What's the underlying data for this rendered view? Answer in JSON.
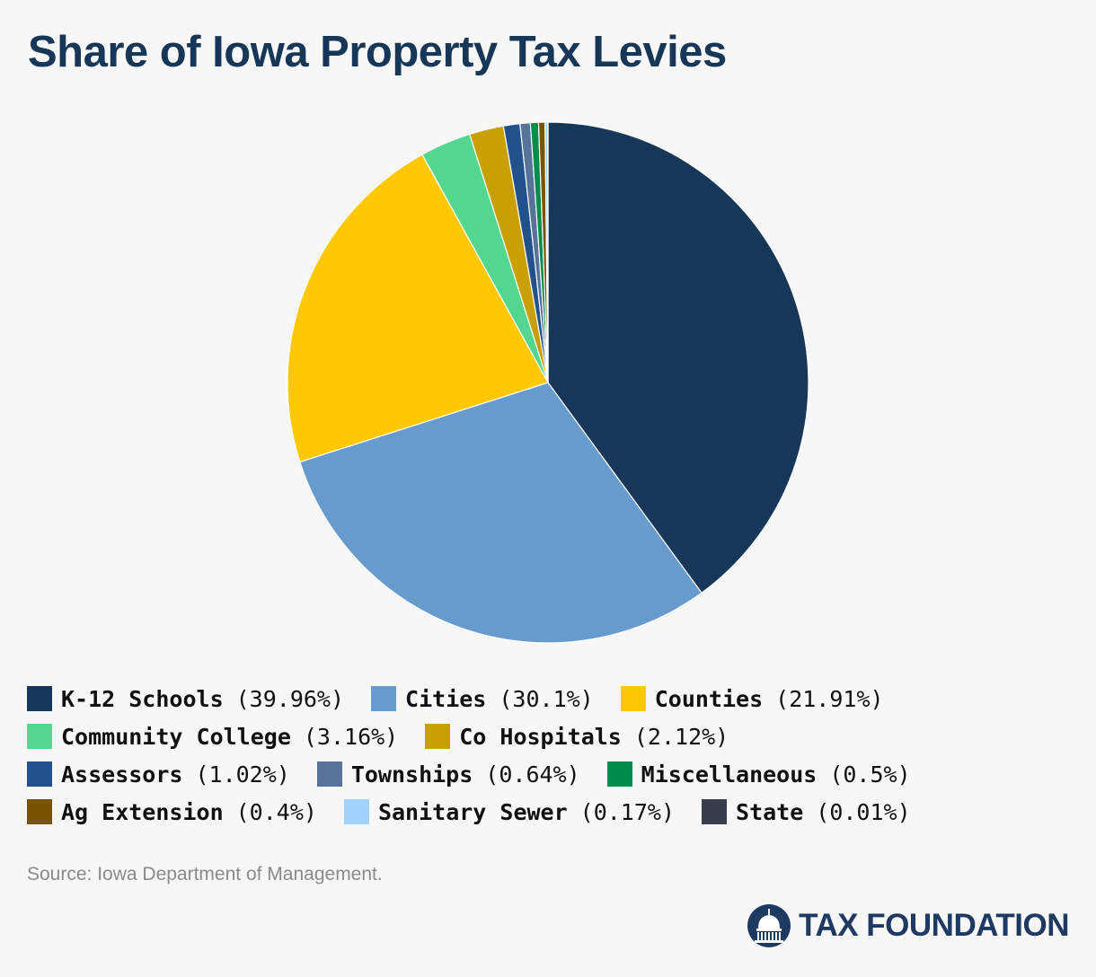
{
  "title": "Share of Iowa Property Tax Levies",
  "source": "Source: Iowa Department of Management.",
  "logo_text": "TAX FOUNDATION",
  "chart_data": {
    "type": "pie",
    "title": "Share of Iowa Property Tax Levies",
    "legend_position": "bottom",
    "slices": [
      {
        "label": "K-12 Schools",
        "value": 39.96,
        "display": "(39.96%)",
        "color": "#173759"
      },
      {
        "label": "Cities",
        "value": 30.1,
        "display": "(30.1%)",
        "color": "#679bcd"
      },
      {
        "label": "Counties",
        "value": 21.91,
        "display": "(21.91%)",
        "color": "#ffc801"
      },
      {
        "label": "Community College",
        "value": 3.16,
        "display": "(3.16%)",
        "color": "#53d68f"
      },
      {
        "label": "Co Hospitals",
        "value": 2.12,
        "display": "(2.12%)",
        "color": "#c9a003"
      },
      {
        "label": "Assessors",
        "value": 1.02,
        "display": "(1.02%)",
        "color": "#21528b"
      },
      {
        "label": "Townships",
        "value": 0.64,
        "display": "(0.64%)",
        "color": "#57739a"
      },
      {
        "label": "Miscellaneous",
        "value": 0.5,
        "display": "(0.5%)",
        "color": "#008c4a"
      },
      {
        "label": "Ag Extension",
        "value": 0.4,
        "display": "(0.4%)",
        "color": "#7a5500"
      },
      {
        "label": "Sanitary Sewer",
        "value": 0.17,
        "display": "(0.17%)",
        "color": "#9fd3f9"
      },
      {
        "label": "State",
        "value": 0.01,
        "display": "(0.01%)",
        "color": "#373d49"
      }
    ]
  }
}
